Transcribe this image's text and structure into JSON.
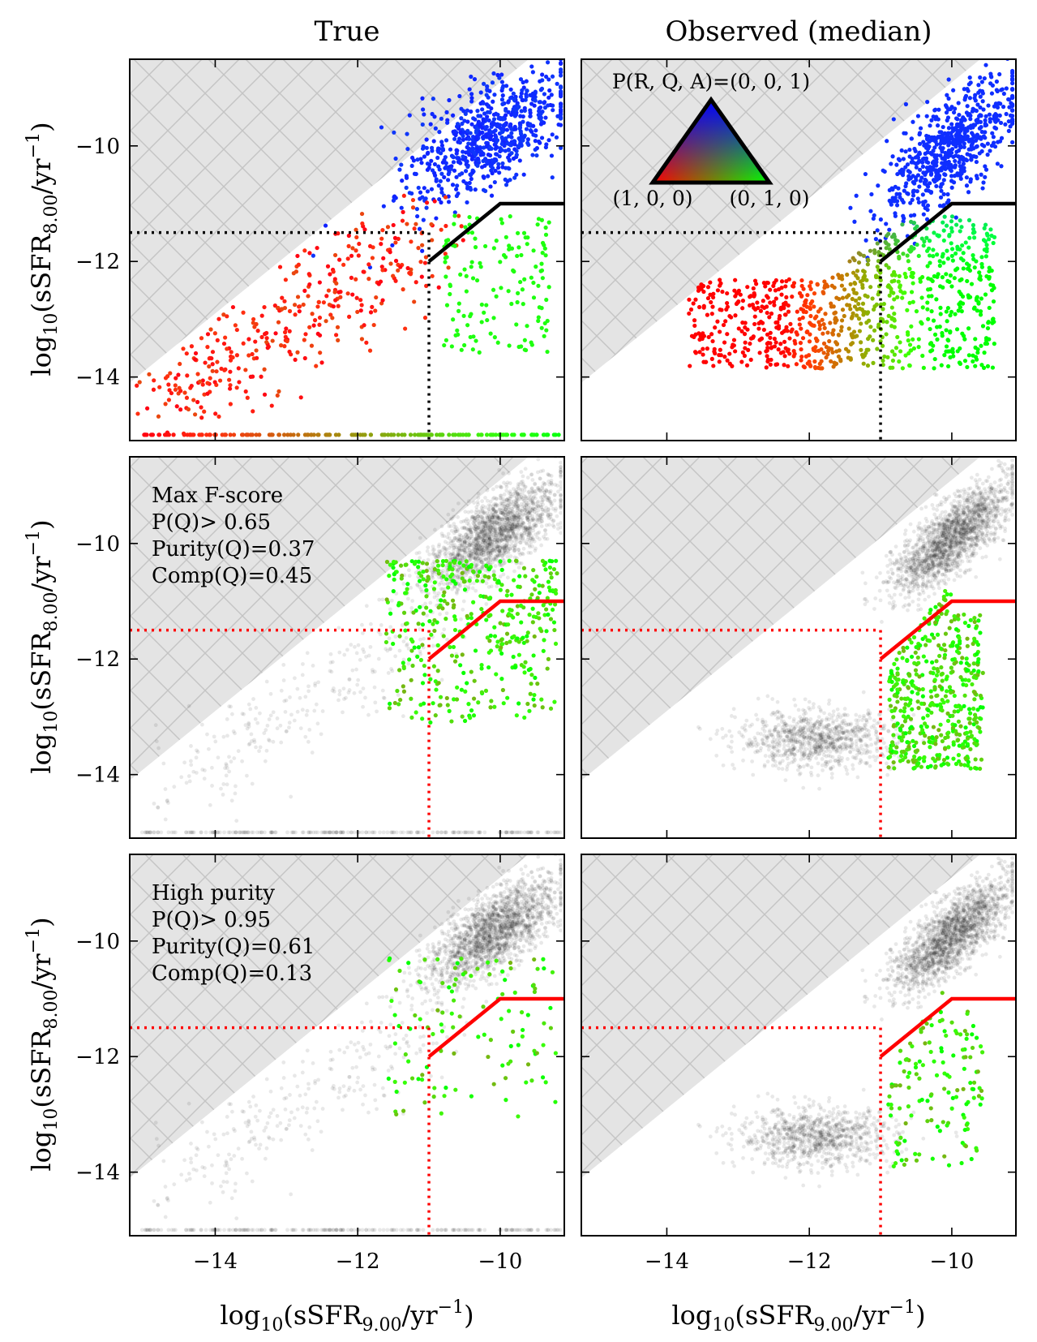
{
  "chart_data": {
    "type": "scatter",
    "column_titles": [
      "True",
      "Observed (median)"
    ],
    "xlabel": {
      "pre": "log",
      "sub1": "10",
      "mid": "(sSFR",
      "sub2": "9.00",
      "post": "/yr",
      "sup": "−1",
      "end": ")"
    },
    "ylabel": {
      "pre": "log",
      "sub1": "10",
      "mid": "(sSFR",
      "sub2": "8.00",
      "post": "/yr",
      "sup": "−1",
      "end": ")"
    },
    "xlim": [
      -15.2,
      -9.1
    ],
    "ylim": [
      -15.1,
      -8.5
    ],
    "x_ticks": [
      -14,
      -12,
      -10
    ],
    "y_ticks": [
      -10,
      -12,
      -14
    ],
    "tick_labels": {
      "-14": "−14",
      "-12": "−12",
      "-10": "−10"
    },
    "excluded_region": {
      "description": "hatched region above the 1:1-like boundary",
      "boundary_offset": 1.1
    },
    "quiescent_boundary": {
      "line": [
        [
          -11.0,
          -12.0
        ],
        [
          -10.0,
          -11.0
        ],
        [
          -9.1,
          -11.0
        ]
      ],
      "dotted_horizontal": [
        [
          -15.2,
          -11.5
        ],
        [
          -11.0,
          -11.5
        ]
      ],
      "dotted_vertical": [
        [
          -11.0,
          -11.5
        ],
        [
          -11.0,
          -15.1
        ]
      ]
    },
    "color_legend": {
      "top_label": "P(R, Q, A)=(0, 0, 1)",
      "left_label": "(1, 0, 0)",
      "right_label": "(0, 1, 0)",
      "colors": {
        "R": "#ff0000",
        "Q": "#00ff00",
        "A": "#0000ff"
      }
    },
    "rows": [
      {
        "annotation": [],
        "boundary_color": "#000000",
        "mode": "probability-colored"
      },
      {
        "annotation": [
          "Max F-score",
          "P(Q)> 0.65",
          "Purity(Q)=0.37",
          "Comp(Q)=0.45"
        ],
        "boundary_color": "#ff0000",
        "mode": "selected-quiescent",
        "threshold": 0.65,
        "purity": 0.37,
        "completeness": 0.45
      },
      {
        "annotation": [
          "High purity",
          "P(Q)> 0.95",
          "Purity(Q)=0.61",
          "Comp(Q)=0.13"
        ],
        "boundary_color": "#ff0000",
        "mode": "selected-quiescent",
        "threshold": 0.95,
        "purity": 0.61,
        "completeness": 0.13
      }
    ]
  }
}
